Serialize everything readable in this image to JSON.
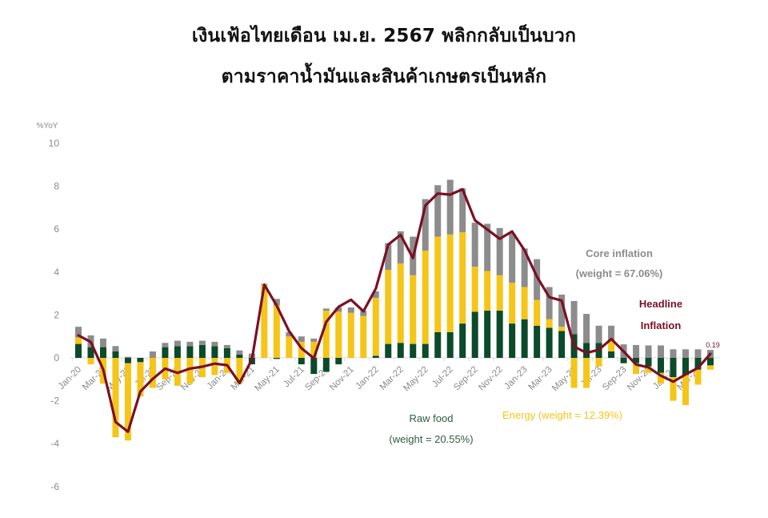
{
  "title": {
    "line1": "เงินเฟ้อไทยเดือน เม.ย. 2567 พลิกกลับเป็นบวก",
    "line2": "ตามราคาน้ำมันและสินค้าเกษตรเป็นหลัก"
  },
  "colors": {
    "raw_food": "#0b4a2a",
    "energy": "#f5c518",
    "core": "#8c8c8c",
    "headline": "#7a1026",
    "axis_text": "#8a8a8a",
    "grid_zero": "#d9d9d9"
  },
  "annotations": {
    "core_line1": "Core inflation",
    "core_line2": "(weight = 67.06%)",
    "headline_line1": "Headline",
    "headline_line2": "Inflation",
    "raw_food_line1": "Raw food",
    "raw_food_line2": "(weight = 20.55%)",
    "energy": "Energy (weight = 12.39%)",
    "last_value": "0.19"
  },
  "chart_data": {
    "type": "bar",
    "subtype": "stacked bar + line",
    "title": "เงินเฟ้อไทยเดือน เม.ย. 2567 พลิกกลับเป็นบวก ตามราคาน้ำมันและสินค้าเกษตรเป็นหลัก",
    "xlabel": "",
    "ylabel": "%YoY",
    "ylim": [
      -6,
      10
    ],
    "yticks": [
      10,
      8,
      6,
      4,
      2,
      0,
      -2,
      -4,
      -6
    ],
    "grid": false,
    "legend": "inline annotations",
    "xtick_labels": [
      "Jan-20",
      "Mar-20",
      "May-20",
      "Jul-20",
      "Sep-20",
      "Nov-20",
      "Jan-21",
      "Mar-21",
      "May-21",
      "Jul-21",
      "Sep-21",
      "Nov-21",
      "Jan-22",
      "Mar-22",
      "May-22",
      "Jul-22",
      "Sep-22",
      "Nov-22",
      "Jan-23",
      "Mar-23",
      "May-23",
      "Jul-23",
      "Sep-23",
      "Nov-23",
      "Jan-24",
      "Mar-24"
    ],
    "categories": [
      "Jan-20",
      "Feb-20",
      "Mar-20",
      "Apr-20",
      "May-20",
      "Jun-20",
      "Jul-20",
      "Aug-20",
      "Sep-20",
      "Oct-20",
      "Nov-20",
      "Dec-20",
      "Jan-21",
      "Feb-21",
      "Mar-21",
      "Apr-21",
      "May-21",
      "Jun-21",
      "Jul-21",
      "Aug-21",
      "Sep-21",
      "Oct-21",
      "Nov-21",
      "Dec-21",
      "Jan-22",
      "Feb-22",
      "Mar-22",
      "Apr-22",
      "May-22",
      "Jun-22",
      "Jul-22",
      "Aug-22",
      "Sep-22",
      "Oct-22",
      "Nov-22",
      "Dec-22",
      "Jan-23",
      "Feb-23",
      "Mar-23",
      "Apr-23",
      "May-23",
      "Jun-23",
      "Jul-23",
      "Aug-23",
      "Sep-23",
      "Oct-23",
      "Nov-23",
      "Dec-23",
      "Jan-24",
      "Feb-24",
      "Mar-24",
      "Apr-24"
    ],
    "series": [
      {
        "name": "Raw food (weight = 20.55%)",
        "type": "bar",
        "values": [
          0.65,
          0.5,
          0.5,
          0.3,
          -0.25,
          -0.2,
          0.0,
          0.5,
          0.55,
          0.55,
          0.6,
          0.55,
          0.45,
          0.15,
          -0.3,
          0.0,
          -0.05,
          0.0,
          -0.3,
          -0.75,
          -0.65,
          -0.3,
          0.0,
          0.0,
          0.1,
          0.65,
          0.7,
          0.65,
          0.65,
          1.2,
          1.2,
          1.6,
          2.15,
          2.2,
          2.2,
          1.6,
          1.8,
          1.5,
          1.4,
          1.25,
          1.1,
          0.7,
          0.7,
          0.3,
          -0.25,
          -0.25,
          -0.4,
          -0.7,
          -0.9,
          -0.8,
          -0.55,
          -0.35
        ]
      },
      {
        "name": "Energy (weight = 12.39%)",
        "type": "bar",
        "values": [
          0.3,
          -0.3,
          -1.2,
          -3.7,
          -3.6,
          -1.6,
          -1.4,
          -1.0,
          -1.3,
          -1.2,
          -0.9,
          -0.8,
          -0.7,
          -1.2,
          0.0,
          3.4,
          2.45,
          1.0,
          0.75,
          0.75,
          2.2,
          2.15,
          2.1,
          1.95,
          2.7,
          3.45,
          3.7,
          3.2,
          4.35,
          4.45,
          4.55,
          4.25,
          2.1,
          1.85,
          1.65,
          1.9,
          1.5,
          1.2,
          0.4,
          0.2,
          -1.4,
          -1.4,
          -0.4,
          0.5,
          0.0,
          -0.5,
          -0.3,
          -0.5,
          -1.1,
          -1.4,
          -0.7,
          -0.2
        ]
      },
      {
        "name": "Core inflation (weight = 67.06%)",
        "type": "bar",
        "values": [
          0.5,
          0.55,
          0.4,
          0.25,
          0.05,
          0.0,
          0.3,
          0.2,
          0.25,
          0.2,
          0.2,
          0.2,
          0.15,
          0.2,
          0.2,
          0.05,
          0.3,
          0.2,
          0.25,
          0.15,
          0.1,
          0.2,
          0.25,
          0.25,
          0.3,
          1.25,
          1.5,
          1.8,
          2.4,
          2.4,
          2.55,
          2.05,
          2.05,
          2.2,
          2.2,
          2.3,
          1.8,
          1.9,
          1.5,
          1.5,
          1.55,
          1.35,
          0.8,
          0.7,
          0.63,
          0.6,
          0.58,
          0.58,
          0.4,
          0.4,
          0.4,
          0.37
        ]
      },
      {
        "name": "Headline Inflation",
        "type": "line",
        "values": [
          1.05,
          0.74,
          -0.54,
          -2.99,
          -3.44,
          -1.57,
          -0.98,
          -0.5,
          -0.7,
          -0.5,
          -0.41,
          -0.27,
          -0.34,
          -1.17,
          -0.08,
          3.41,
          2.44,
          1.25,
          0.45,
          -0.02,
          1.68,
          2.38,
          2.71,
          2.17,
          3.23,
          5.28,
          5.73,
          4.65,
          7.1,
          7.66,
          7.61,
          7.86,
          6.41,
          5.98,
          5.55,
          5.89,
          5.02,
          3.79,
          2.83,
          2.67,
          0.53,
          0.23,
          0.38,
          0.88,
          0.3,
          -0.31,
          -0.44,
          -0.83,
          -1.11,
          -0.77,
          -0.47,
          0.19
        ]
      }
    ],
    "annotations": [
      "Core inflation (weight = 67.06%)",
      "Headline Inflation",
      "Raw food (weight = 20.55%)",
      "Energy (weight = 12.39%)",
      "0.19"
    ]
  }
}
